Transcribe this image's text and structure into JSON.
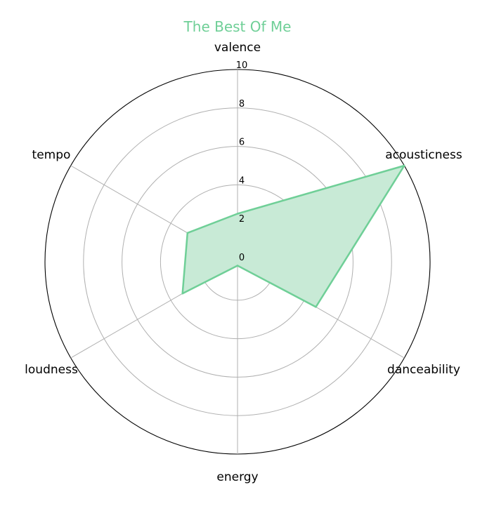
{
  "chart_data": {
    "type": "radar",
    "title": "The Best Of Me",
    "axes": [
      "valence",
      "acousticness",
      "danceability",
      "energy",
      "loudness",
      "tempo"
    ],
    "series": [
      {
        "values": [
          2.5,
          10,
          4.7,
          0.2,
          3.3,
          3.0
        ]
      }
    ],
    "rlim": [
      0,
      10
    ],
    "rticks": [
      "0",
      "2",
      "4",
      "6",
      "8",
      "10"
    ],
    "grid": true,
    "colors": {
      "series": "#6fcf97",
      "fill": "#c8ead6",
      "grid": "#b0b0b0",
      "title": "#6fcf97"
    }
  }
}
